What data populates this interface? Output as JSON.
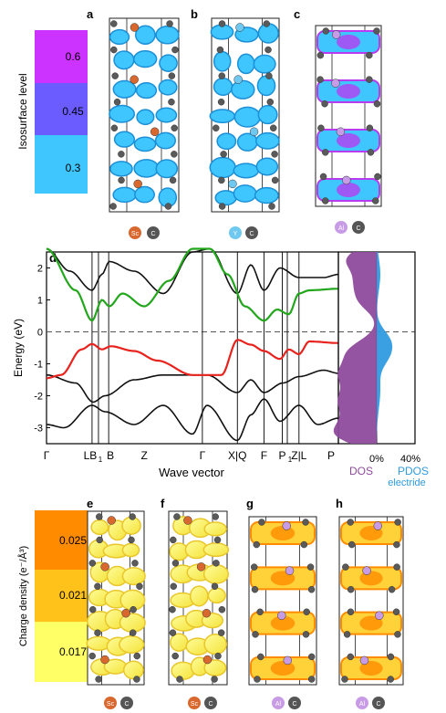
{
  "panels": {
    "a": "a",
    "b": "b",
    "c": "c",
    "d": "d",
    "e": "e",
    "f": "f",
    "g": "g",
    "h": "h"
  },
  "isosurface_legend": {
    "title": "Isosurface level",
    "levels": [
      "0.6",
      "0.45",
      "0.3"
    ],
    "colors": [
      "#cc33ff",
      "#6a5cff",
      "#3fc6ff"
    ]
  },
  "charge_legend": {
    "title": "Charge density (e⁻/Å³)",
    "levels": [
      "0.025",
      "0.021",
      "0.017"
    ],
    "colors": [
      "#ff8c00",
      "#ffc21a",
      "#ffff66"
    ]
  },
  "element_badges": {
    "a": [
      "Sc",
      "C"
    ],
    "b": [
      "Y",
      "C"
    ],
    "c": [
      "Al",
      "C"
    ],
    "e": [
      "Sc",
      "C"
    ],
    "f": [
      "Sc",
      "C"
    ],
    "g": [
      "Al",
      "C"
    ],
    "h": [
      "Al",
      "C"
    ]
  },
  "element_colors": {
    "Sc": "#d9682f",
    "Y": "#6fc8f0",
    "Al": "#c89be6",
    "C": "#555555"
  },
  "chart_data": {
    "type": "line",
    "ylabel": "Energy (eV)",
    "xlabel": "Wave vector",
    "ylim": [
      -3.5,
      2.5
    ],
    "yticks": [
      2,
      1,
      0,
      -1,
      -2,
      -3
    ],
    "kpoints": [
      "Γ",
      "LB",
      "1",
      "B",
      "Z",
      "Γ",
      "X|Q",
      "F",
      "P",
      "1",
      "Z|L",
      "P"
    ],
    "dos_labels": {
      "dos": "DOS",
      "pdos": "PDOS",
      "electride": "electride",
      "tick0": "0%",
      "tick40": "40%"
    },
    "colors": {
      "valence": "#e8231e",
      "conduction": "#22a61b",
      "other": "#111111",
      "dos": "#8e4b9c",
      "pdos": "#2f9be0"
    }
  }
}
